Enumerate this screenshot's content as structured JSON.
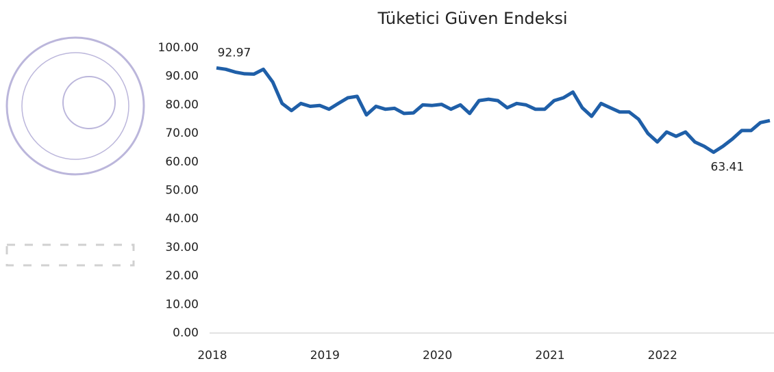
{
  "chart_data": {
    "type": "line",
    "title": "Tüketici Güven Endeksi",
    "x": [
      2018,
      2018.083,
      2018.167,
      2018.25,
      2018.333,
      2018.417,
      2018.5,
      2018.583,
      2018.667,
      2018.75,
      2018.833,
      2018.917,
      2019,
      2019.083,
      2019.167,
      2019.25,
      2019.333,
      2019.417,
      2019.5,
      2019.583,
      2019.667,
      2019.75,
      2019.833,
      2019.917,
      2020,
      2020.083,
      2020.167,
      2020.25,
      2020.333,
      2020.417,
      2020.5,
      2020.583,
      2020.667,
      2020.75,
      2020.833,
      2020.917,
      2021,
      2021.083,
      2021.167,
      2021.25,
      2021.333,
      2021.417,
      2021.5,
      2021.583,
      2021.667,
      2021.75,
      2021.833,
      2021.917,
      2022,
      2022.083,
      2022.167,
      2022.25,
      2022.333,
      2022.417,
      2022.5,
      2022.583,
      2022.667,
      2022.75,
      2022.833,
      2022.917
    ],
    "series": [
      {
        "color": "#1f5fa8",
        "values": [
          92.97,
          92.5,
          91.5,
          90.9,
          90.8,
          92.5,
          88,
          80.5,
          78,
          80.5,
          79.5,
          79.8,
          78.5,
          80.5,
          82.5,
          83,
          76.5,
          79.5,
          78.5,
          78.8,
          77,
          77.2,
          80,
          79.8,
          80.2,
          78.5,
          80,
          77,
          81.5,
          82,
          81.5,
          79,
          80.5,
          80,
          78.5,
          78.5,
          81.5,
          82.5,
          84.5,
          79,
          76,
          80.5,
          79,
          77.5,
          77.5,
          75,
          70,
          67,
          70.5,
          69,
          70.5,
          67,
          65.5,
          63.41,
          65.5,
          68,
          71,
          71,
          73.8,
          74.5
        ]
      }
    ],
    "data_labels": "min-max",
    "xlim": [
      2018,
      2022.917
    ],
    "xticks": [
      2018,
      2019,
      2020,
      2021,
      2022
    ],
    "ylim": [
      0,
      100
    ],
    "yticks": [
      {
        "value": 0,
        "label": "0.00"
      },
      {
        "value": 10,
        "label": "10.00"
      },
      {
        "value": 20,
        "label": "20.00"
      },
      {
        "value": 30,
        "label": "30.00"
      },
      {
        "value": 40,
        "label": "40.00"
      },
      {
        "value": 50,
        "label": "50.00"
      },
      {
        "value": 60,
        "label": "60.00"
      },
      {
        "value": 70,
        "label": "70.00"
      },
      {
        "value": 80,
        "label": "80.00"
      },
      {
        "value": 90,
        "label": "90.00"
      },
      {
        "value": 100,
        "label": "100.00"
      }
    ]
  }
}
